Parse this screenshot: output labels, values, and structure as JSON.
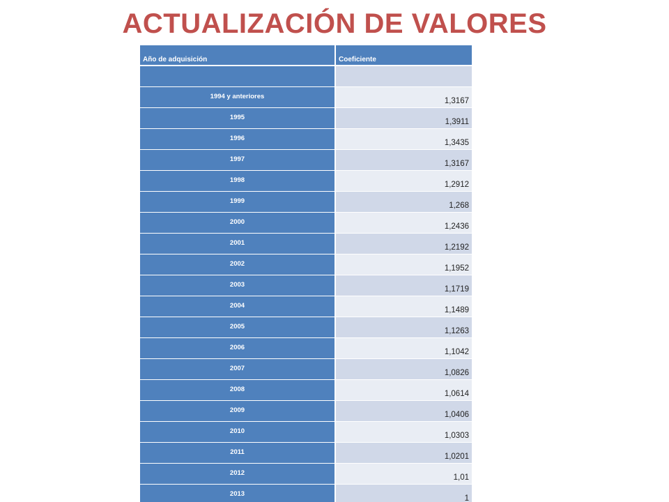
{
  "title": "ACTUALIZACIÓN DE VALORES",
  "table": {
    "headers": [
      "Año de adquisición",
      "Coeficiente"
    ],
    "rows": [
      {
        "year": "",
        "coef": ""
      },
      {
        "year": "1994 y anteriores",
        "coef": "1,3167"
      },
      {
        "year": "1995",
        "coef": "1,3911"
      },
      {
        "year": "1996",
        "coef": "1,3435"
      },
      {
        "year": "1997",
        "coef": "1,3167"
      },
      {
        "year": "1998",
        "coef": "1,2912"
      },
      {
        "year": "1999",
        "coef": "1,268"
      },
      {
        "year": "2000",
        "coef": "1,2436"
      },
      {
        "year": "2001",
        "coef": "1,2192"
      },
      {
        "year": "2002",
        "coef": "1,1952"
      },
      {
        "year": "2003",
        "coef": "1,1719"
      },
      {
        "year": "2004",
        "coef": "1,1489"
      },
      {
        "year": "2005",
        "coef": "1,1263"
      },
      {
        "year": "2006",
        "coef": "1,1042"
      },
      {
        "year": "2007",
        "coef": "1,0826"
      },
      {
        "year": "2008",
        "coef": "1,0614"
      },
      {
        "year": "2009",
        "coef": "1,0406"
      },
      {
        "year": "2010",
        "coef": "1,0303"
      },
      {
        "year": "2011",
        "coef": "1,0201"
      },
      {
        "year": "2012",
        "coef": "1,01"
      },
      {
        "year": "2013",
        "coef": "1"
      }
    ]
  },
  "colors": {
    "title": "#c0504d",
    "header_fill": "#4f81bd",
    "band_dark": "#d0d8e8",
    "band_light": "#e9edf4"
  }
}
